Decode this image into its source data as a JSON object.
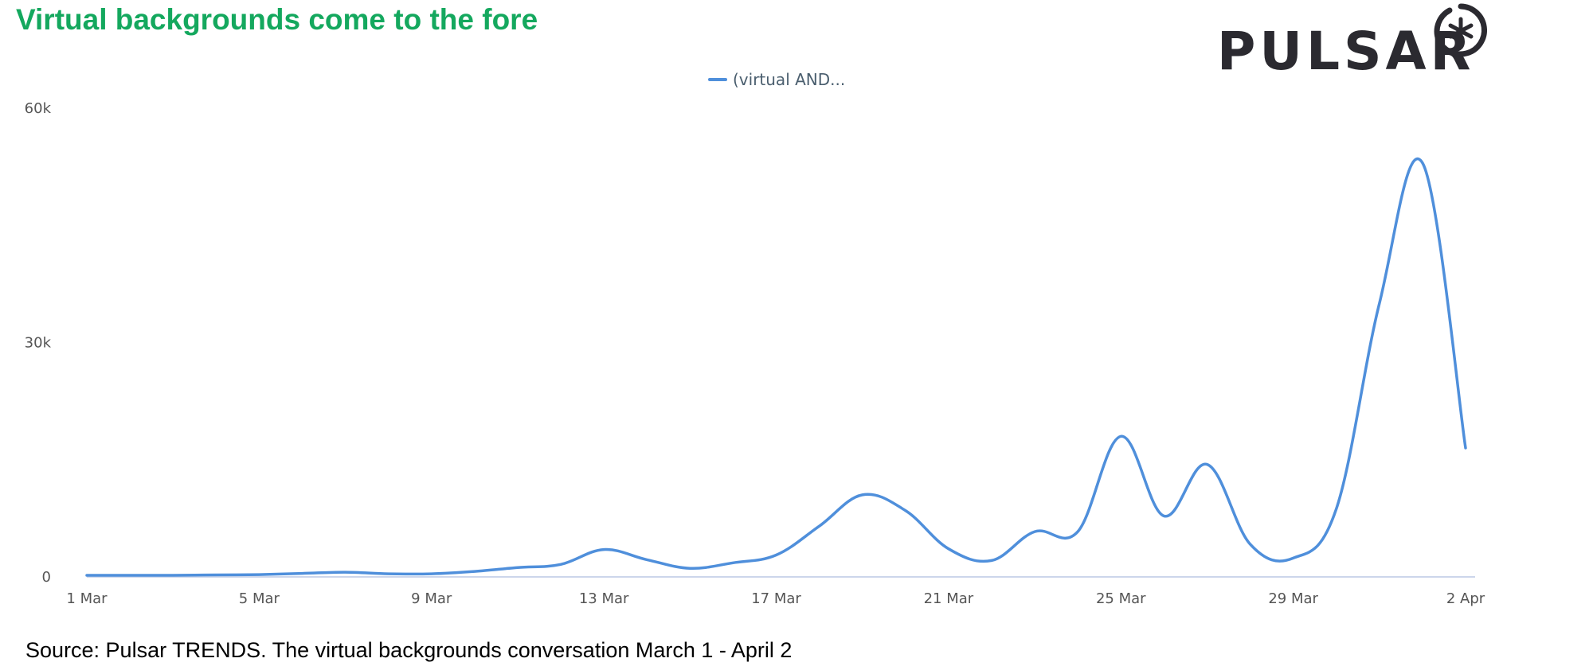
{
  "title": "Virtual backgrounds come to the fore",
  "brand": {
    "logo_text": "PULSAR",
    "logo_icon": "asterisk-circle-icon",
    "title_color": "#14a85e",
    "logo_color": "#2b2a30"
  },
  "source": "Source: Pulsar TRENDS. The virtual backgrounds conversation March 1 - April 2",
  "chart_data": {
    "type": "line",
    "title": "",
    "xlabel": "",
    "ylabel": "",
    "legend_position": "top-center",
    "grid": false,
    "ylim": [
      0,
      60000
    ],
    "y_ticks": [
      {
        "value": 0,
        "label": "0"
      },
      {
        "value": 30000,
        "label": "30k"
      },
      {
        "value": 60000,
        "label": "60k"
      }
    ],
    "x_ticks": [
      {
        "day": 1,
        "label": "1 Mar"
      },
      {
        "day": 5,
        "label": "5 Mar"
      },
      {
        "day": 9,
        "label": "9 Mar"
      },
      {
        "day": 13,
        "label": "13 Mar"
      },
      {
        "day": 17,
        "label": "17 Mar"
      },
      {
        "day": 21,
        "label": "21 Mar"
      },
      {
        "day": 25,
        "label": "25 Mar"
      },
      {
        "day": 29,
        "label": "29 Mar"
      },
      {
        "day": 33,
        "label": "2 Apr"
      }
    ],
    "x": [
      "1 Mar",
      "2 Mar",
      "3 Mar",
      "4 Mar",
      "5 Mar",
      "6 Mar",
      "7 Mar",
      "8 Mar",
      "9 Mar",
      "10 Mar",
      "11 Mar",
      "12 Mar",
      "13 Mar",
      "14 Mar",
      "15 Mar",
      "16 Mar",
      "17 Mar",
      "18 Mar",
      "19 Mar",
      "20 Mar",
      "21 Mar",
      "22 Mar",
      "23 Mar",
      "24 Mar",
      "25 Mar",
      "26 Mar",
      "27 Mar",
      "28 Mar",
      "29 Mar",
      "30 Mar",
      "31 Mar",
      "1 Apr",
      "2 Apr"
    ],
    "series": [
      {
        "name": "(virtual AND...",
        "color": "#4f8fdb",
        "values": [
          200,
          200,
          200,
          250,
          300,
          450,
          600,
          400,
          400,
          700,
          1200,
          1600,
          3500,
          2200,
          1100,
          1800,
          2800,
          6500,
          10500,
          8500,
          3600,
          2100,
          5800,
          5800,
          18000,
          7800,
          14400,
          4200,
          2400,
          8700,
          35000,
          53000,
          16500
        ]
      }
    ]
  }
}
